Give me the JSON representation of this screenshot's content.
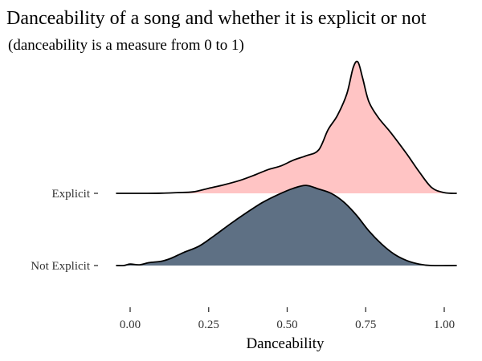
{
  "chart_data": {
    "type": "ridgeline",
    "title": "Danceability of a song and whether it is explicit or not",
    "subtitle": "(danceability is a measure from 0 to 1)",
    "xlabel": "Danceability",
    "ylabel": "",
    "xlim": [
      -0.05,
      1.04
    ],
    "x_ticks": [
      "0.00",
      "0.25",
      "0.50",
      "0.75",
      "1.00"
    ],
    "x_tick_values": [
      0,
      0.25,
      0.5,
      0.75,
      1.0
    ],
    "grid": false,
    "legend": "none",
    "series": [
      {
        "name": "Explicit",
        "color": "#FFC4C4",
        "density": [
          [
            -0.045,
            0
          ],
          [
            0.05,
            0.0
          ],
          [
            0.1,
            0.002
          ],
          [
            0.15,
            0.01
          ],
          [
            0.2,
            0.02
          ],
          [
            0.25,
            0.07
          ],
          [
            0.3,
            0.12
          ],
          [
            0.35,
            0.18
          ],
          [
            0.4,
            0.26
          ],
          [
            0.44,
            0.33
          ],
          [
            0.48,
            0.38
          ],
          [
            0.52,
            0.46
          ],
          [
            0.56,
            0.52
          ],
          [
            0.6,
            0.6
          ],
          [
            0.63,
            0.88
          ],
          [
            0.66,
            1.08
          ],
          [
            0.69,
            1.38
          ],
          [
            0.71,
            1.74
          ],
          [
            0.725,
            1.82
          ],
          [
            0.74,
            1.6
          ],
          [
            0.76,
            1.27
          ],
          [
            0.79,
            1.05
          ],
          [
            0.83,
            0.84
          ],
          [
            0.88,
            0.55
          ],
          [
            0.92,
            0.3
          ],
          [
            0.96,
            0.08
          ],
          [
            1.0,
            0.01
          ],
          [
            1.04,
            0
          ]
        ]
      },
      {
        "name": "Not Explicit",
        "color": "#5E7084",
        "density": [
          [
            -0.045,
            0
          ],
          [
            -0.02,
            0.0
          ],
          [
            0.0,
            0.02
          ],
          [
            0.03,
            0.01
          ],
          [
            0.06,
            0.04
          ],
          [
            0.1,
            0.06
          ],
          [
            0.13,
            0.1
          ],
          [
            0.17,
            0.18
          ],
          [
            0.22,
            0.27
          ],
          [
            0.27,
            0.42
          ],
          [
            0.32,
            0.58
          ],
          [
            0.37,
            0.73
          ],
          [
            0.42,
            0.87
          ],
          [
            0.47,
            0.98
          ],
          [
            0.52,
            1.07
          ],
          [
            0.56,
            1.11
          ],
          [
            0.6,
            1.06
          ],
          [
            0.64,
            1.0
          ],
          [
            0.68,
            0.88
          ],
          [
            0.72,
            0.7
          ],
          [
            0.76,
            0.48
          ],
          [
            0.8,
            0.3
          ],
          [
            0.84,
            0.16
          ],
          [
            0.88,
            0.07
          ],
          [
            0.92,
            0.02
          ],
          [
            0.96,
            0.0
          ],
          [
            1.04,
            0
          ]
        ]
      }
    ]
  }
}
